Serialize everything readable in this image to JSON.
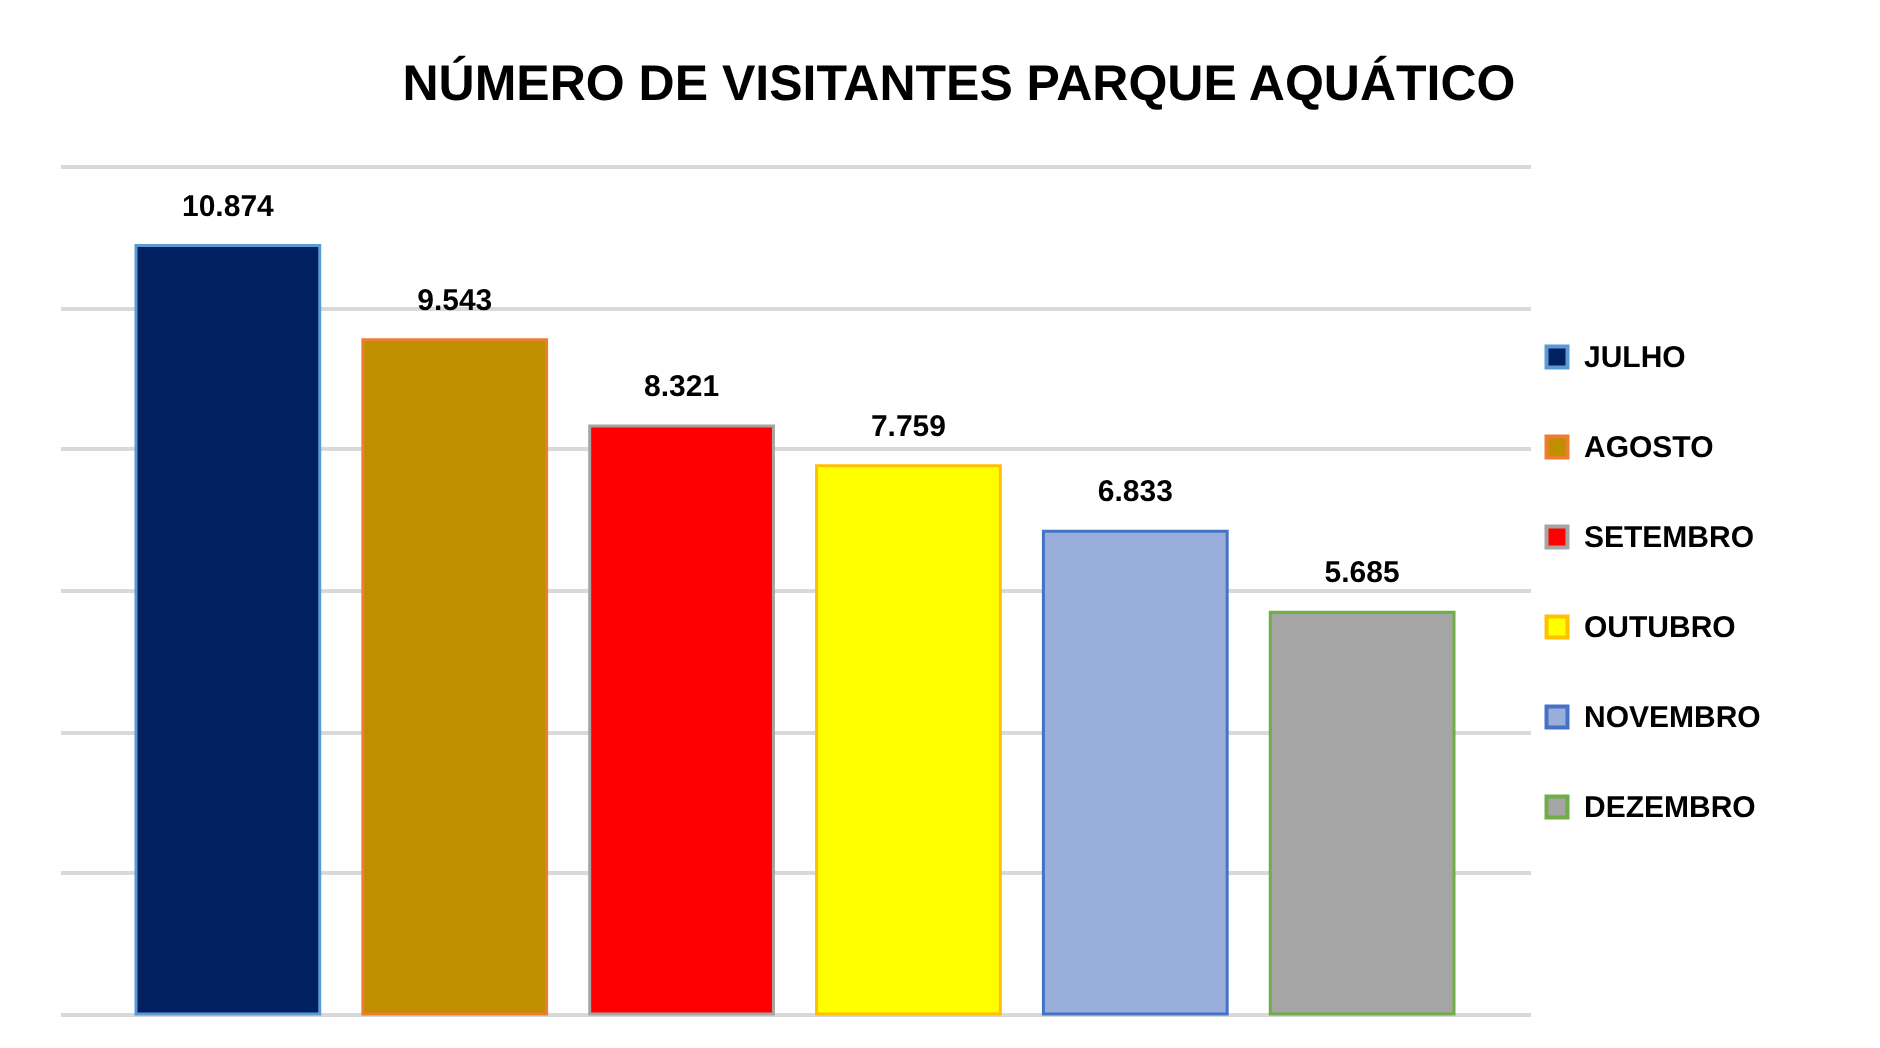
{
  "chart_data": {
    "type": "bar",
    "title": "NÚMERO DE VISITANTES PARQUE AQUÁTICO",
    "categories": [
      null
    ],
    "series": [
      {
        "name": "JULHO",
        "color": "#002060",
        "values": [
          10874
        ],
        "value_labels": [
          "10.874"
        ]
      },
      {
        "name": "AGOSTO",
        "color": "#bf8f00",
        "values": [
          9543
        ],
        "value_labels": [
          "9.543"
        ]
      },
      {
        "name": "SETEMBRO",
        "color": "#ff0000",
        "values": [
          8321
        ],
        "value_labels": [
          "8.321"
        ]
      },
      {
        "name": "OUTUBRO",
        "color": "#ffff00",
        "values": [
          7759
        ],
        "value_labels": [
          "7.759"
        ]
      },
      {
        "name": "NOVEMBRO",
        "color": "#9aaedc",
        "values": [
          6833
        ],
        "value_labels": [
          "6.833"
        ]
      },
      {
        "name": "DEZEMBRO",
        "color": "#a5a5a5",
        "values": [
          5685
        ],
        "value_labels": [
          "5.685"
        ]
      }
    ],
    "ylim": [
      0,
      12000
    ],
    "yticks": [
      {
        "value": 0,
        "label": null
      },
      {
        "value": 2000,
        "label": null
      },
      {
        "value": 4000,
        "label": null
      },
      {
        "value": 6000,
        "label": null
      },
      {
        "value": 8000,
        "label": null
      },
      {
        "value": 10000,
        "label": null
      },
      {
        "value": 12000,
        "label": null
      }
    ],
    "grid": "y",
    "legend": "right",
    "tick_labels": false
  }
}
